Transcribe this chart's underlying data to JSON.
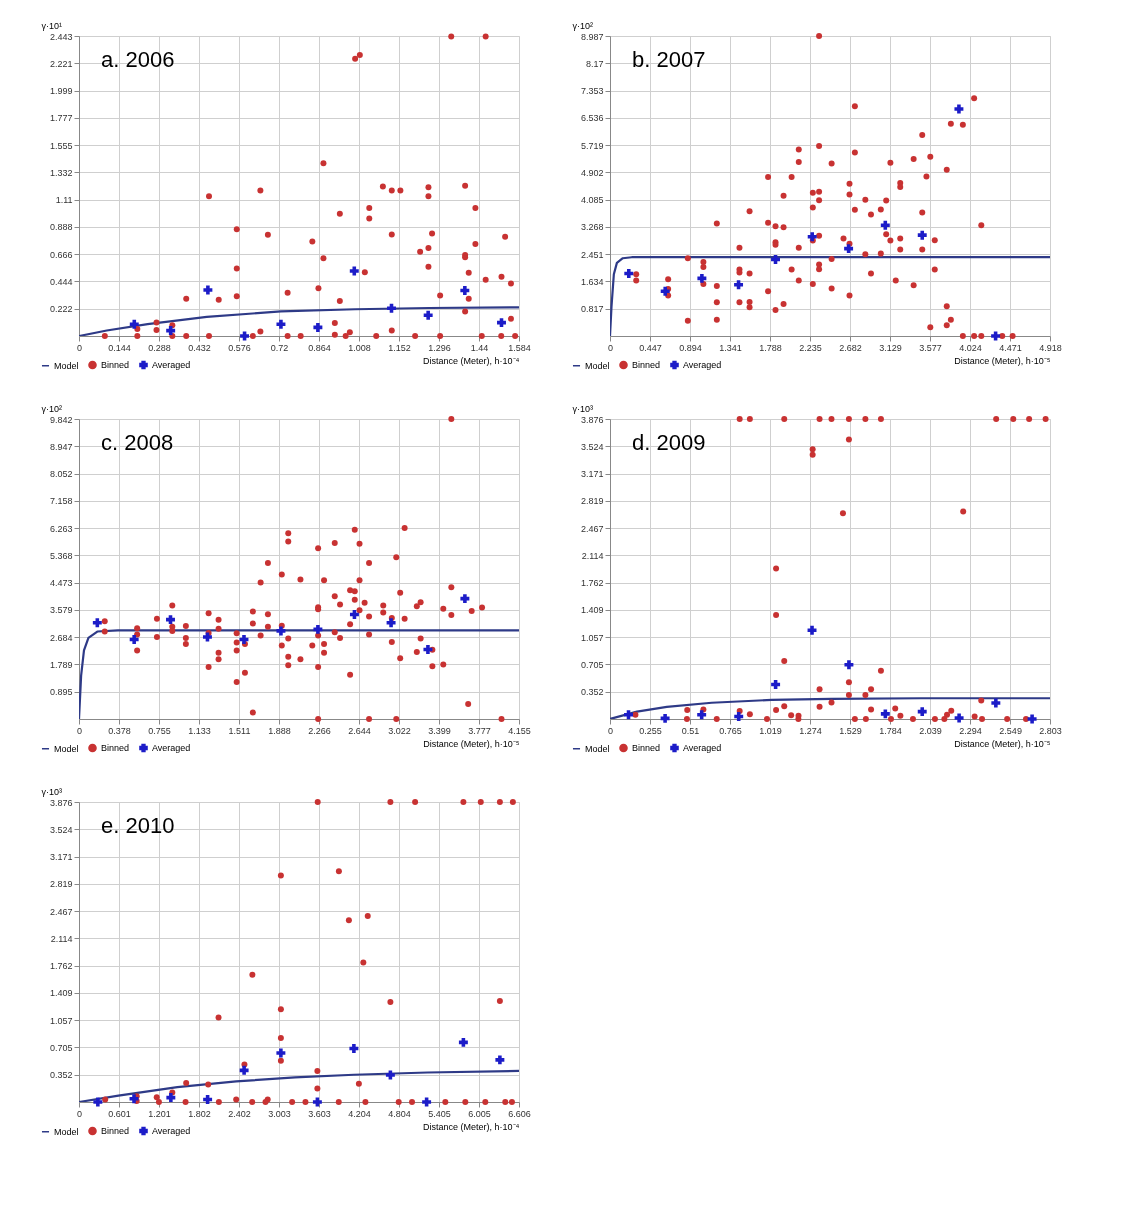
{
  "chart_data": [
    {
      "type": "scatter",
      "title": "a. 2006",
      "xlabel": "Distance (Meter), h·10⁻⁴",
      "ylabel": "γ·10¹",
      "grid": true,
      "legend": "bottom left",
      "xlim": [
        0,
        1.584
      ],
      "ylim": [
        0,
        2.443
      ],
      "xticks": [
        0,
        0.144,
        0.288,
        0.432,
        0.576,
        0.72,
        0.864,
        1.008,
        1.152,
        1.296,
        1.44,
        1.584
      ],
      "yticks": [
        0.222,
        0.444,
        0.666,
        0.888,
        1.11,
        1.332,
        1.555,
        1.777,
        1.999,
        2.221,
        2.443
      ],
      "series": [
        {
          "name": "Model",
          "type": "line",
          "color": "#2e3a87",
          "marker": "none",
          "x": [
            0,
            0.1,
            0.247,
            0.46,
            0.727,
            0.994,
            1.26,
            1.584
          ],
          "values": [
            0,
            0.045,
            0.096,
            0.156,
            0.2,
            0.218,
            0.228,
            0.233
          ]
        },
        {
          "name": "Binned",
          "color": "#c83232",
          "marker": "circle",
          "x": [
            0.093,
            0.21,
            0.21,
            0.279,
            0.279,
            0.336,
            0.336,
            0.386,
            0.386,
            0.468,
            0.468,
            0.503,
            0.568,
            0.568,
            0.568,
            0.626,
            0.653,
            0.653,
            0.68,
            0.751,
            0.751,
            0.798,
            0.84,
            0.862,
            0.88,
            0.88,
            0.921,
            0.921,
            0.939,
            0.939,
            0.975,
            0.994,
            1.011,
            1.029,
            1.045,
            1.045,
            1.094,
            1.126,
            1.126,
            1.126,
            1.157,
            1.228,
            1.258,
            1.258,
            1.258,
            1.258,
            1.271,
            1.3,
            1.34,
            1.39,
            1.39,
            1.39,
            1.39,
            1.403,
            1.403,
            1.427,
            1.427,
            1.464,
            1.464,
            1.521,
            1.534,
            1.555,
            1.555,
            0.96,
            1.07,
            1.21,
            1.3,
            1.45,
            1.52,
            1.57
          ],
          "values": [
            0,
            0.057,
            0,
            0.109,
            0.049,
            0.088,
            0,
            0.304,
            0,
            1.139,
            0,
            0.296,
            0.869,
            0.55,
            0.324,
            0,
            1.185,
            0.036,
            0.825,
            0.353,
            0,
            0,
            0.77,
            0.389,
            1.406,
            0.633,
            0.106,
            0.01,
            0.996,
            0.285,
            0.031,
            2.257,
            2.288,
            0.519,
            1.043,
            0.957,
            1.217,
            1.185,
            0.827,
            0.044,
            1.185,
            0.687,
            1.211,
            1.139,
            0.716,
            0.563,
            0.835,
            0.329,
            2.438,
            1.224,
            0.659,
            0.641,
            0.2,
            0.516,
            0.304,
            1.043,
            0.75,
            2.438,
            0.459,
            0.482,
            0.809,
            0.428,
            0.14,
            0,
            0,
            0,
            0,
            0,
            0,
            0
          ]
        },
        {
          "name": "Averaged",
          "color": "#1c1cc8",
          "marker": "cross",
          "x": [
            0.199,
            0.33,
            0.464,
            0.596,
            0.727,
            0.86,
            0.991,
            1.125,
            1.257,
            1.389,
            1.521
          ],
          "values": [
            0.096,
            0.044,
            0.374,
            0,
            0.096,
            0.07,
            0.529,
            0.226,
            0.169,
            0.371,
            0.109
          ]
        }
      ]
    },
    {
      "type": "scatter",
      "title": "b. 2007",
      "xlabel": "Distance (Meter), h·10⁻⁵",
      "ylabel": "γ·10²",
      "grid": true,
      "legend": "bottom left",
      "xlim": [
        0,
        4.918
      ],
      "ylim": [
        0,
        8.987
      ],
      "xticks": [
        0,
        0.447,
        0.894,
        1.341,
        1.788,
        2.235,
        2.682,
        3.129,
        3.577,
        4.024,
        4.471,
        4.918
      ],
      "yticks": [
        0.817,
        1.634,
        2.451,
        3.268,
        4.085,
        4.902,
        5.719,
        6.536,
        7.353,
        8.17,
        8.987
      ],
      "series": [
        {
          "name": "Model",
          "type": "line",
          "color": "#2e3a87",
          "marker": "none",
          "x": [
            0,
            0.017,
            0.043,
            0.077,
            0.143,
            0.243,
            0.477,
            4.918
          ],
          "values": [
            0,
            0.89,
            1.85,
            2.19,
            2.33,
            2.36,
            2.36,
            2.36
          ]
        },
        {
          "name": "Binned",
          "color": "#c83232",
          "marker": "circle",
          "x": [
            0.293,
            0.293,
            0.65,
            0.65,
            0.65,
            0.87,
            0.87,
            1.044,
            1.044,
            1.044,
            1.194,
            1.194,
            1.194,
            1.194,
            1.447,
            1.447,
            1.447,
            1.447,
            1.56,
            1.56,
            1.56,
            1.56,
            1.767,
            1.767,
            1.767,
            1.85,
            1.85,
            1.85,
            1.85,
            1.94,
            1.94,
            1.94,
            2.03,
            2.03,
            2.11,
            2.11,
            2.11,
            2.11,
            2.267,
            2.267,
            2.267,
            2.267,
            2.337,
            2.337,
            2.337,
            2.337,
            2.337,
            2.337,
            2.337,
            2.477,
            2.477,
            2.477,
            2.61,
            2.677,
            2.677,
            2.677,
            2.677,
            2.737,
            2.737,
            2.737,
            2.854,
            2.854,
            2.917,
            2.917,
            3.027,
            3.027,
            3.087,
            3.087,
            3.134,
            3.134,
            3.194,
            3.244,
            3.244,
            3.244,
            3.244,
            3.394,
            3.394,
            3.49,
            3.49,
            3.49,
            3.537,
            3.58,
            3.58,
            3.63,
            3.63,
            3.764,
            3.764,
            3.764,
            3.81,
            3.81,
            3.944,
            3.944,
            4.07,
            4.07,
            4.15,
            4.15,
            4.384,
            4.5
          ],
          "values": [
            1.85,
            1.66,
            1.7,
            1.41,
            1.21,
            0.46,
            2.33,
            2.22,
            2.07,
            1.56,
            3.37,
            1.5,
            1.01,
            0.49,
            2.64,
            1.99,
            1.9,
            1.01,
            3.74,
            1.87,
            1.02,
            0.86,
            4.76,
            3.39,
            1.34,
            3.29,
            2.81,
            2.73,
            0.78,
            4.2,
            3.26,
            0.96,
            4.76,
            1.99,
            5.59,
            5.21,
            2.64,
            1.66,
            4.29,
            3.85,
            2.86,
            1.56,
            8.987,
            5.69,
            4.32,
            4.07,
            3.0,
            2.14,
            2.0,
            5.17,
            2.31,
            1.42,
            2.92,
            4.56,
            4.24,
            2.76,
            1.21,
            6.88,
            5.5,
            3.78,
            4.08,
            2.45,
            3.64,
            1.87,
            3.79,
            2.47,
            4.06,
            3.05,
            5.19,
            2.86,
            1.66,
            4.58,
            4.46,
            2.92,
            2.59,
            5.3,
            1.52,
            6.02,
            3.7,
            2.59,
            4.78,
            5.37,
            0.26,
            2.87,
            1.99,
            4.98,
            0.89,
            0.32,
            6.36,
            0.49,
            6.33,
            0,
            7.12,
            0,
            3.32,
            0,
            0,
            0
          ]
        },
        {
          "name": "Averaged",
          "color": "#1c1cc8",
          "marker": "cross",
          "x": [
            0.21,
            0.617,
            1.027,
            1.437,
            1.85,
            2.26,
            2.667,
            3.077,
            3.49,
            3.9,
            4.31
          ],
          "values": [
            1.87,
            1.343,
            1.726,
            1.534,
            2.292,
            2.973,
            2.618,
            3.318,
            3.021,
            6.8,
            0
          ]
        }
      ]
    },
    {
      "type": "scatter",
      "title": "c. 2008",
      "xlabel": "Distance (Meter), h·10⁻⁵",
      "ylabel": "γ·10²",
      "grid": true,
      "legend": "bottom left",
      "xlim": [
        0,
        4.155
      ],
      "ylim": [
        0,
        9.842
      ],
      "xticks": [
        0,
        0.378,
        0.755,
        1.133,
        1.511,
        1.888,
        2.266,
        2.644,
        3.022,
        3.399,
        3.777,
        4.155
      ],
      "yticks": [
        0.895,
        1.789,
        2.684,
        3.579,
        4.473,
        5.368,
        6.263,
        7.158,
        8.052,
        8.947,
        9.842
      ],
      "series": [
        {
          "name": "Model",
          "type": "line",
          "color": "#2e3a87",
          "marker": "none",
          "x": [
            0,
            0.02,
            0.047,
            0.089,
            0.173,
            0.368,
            4.155
          ],
          "values": [
            0,
            1.42,
            2.25,
            2.66,
            2.87,
            2.91,
            2.91
          ]
        },
        {
          "name": "Binned",
          "color": "#c83232",
          "marker": "circle",
          "x": [
            0.243,
            0.243,
            0.549,
            0.549,
            0.549,
            0.736,
            0.736,
            0.881,
            0.881,
            0.881,
            1.009,
            1.009,
            1.009,
            1.224,
            1.224,
            1.224,
            1.318,
            1.318,
            1.318,
            1.318,
            1.489,
            1.489,
            1.489,
            1.489,
            1.567,
            1.567,
            1.642,
            1.642,
            1.642,
            1.715,
            1.715,
            1.784,
            1.784,
            1.784,
            1.915,
            1.915,
            1.915,
            1.976,
            1.976,
            1.976,
            1.976,
            1.976,
            2.091,
            2.091,
            2.203,
            2.258,
            2.258,
            2.258,
            2.258,
            2.258,
            2.258,
            2.314,
            2.314,
            2.314,
            2.415,
            2.415,
            2.415,
            2.465,
            2.465,
            2.56,
            2.56,
            2.56,
            2.604,
            2.604,
            2.604,
            2.649,
            2.649,
            2.649,
            2.697,
            2.739,
            2.739,
            2.739,
            2.739,
            2.873,
            2.873,
            2.954,
            2.954,
            2.996,
            2.996,
            3.033,
            3.033,
            3.075,
            3.075,
            3.19,
            3.19,
            3.226,
            3.226,
            3.337,
            3.337,
            3.44,
            3.44,
            3.516,
            3.516,
            3.516,
            3.675,
            3.708,
            3.806,
            3.99
          ],
          "values": [
            3.21,
            2.87,
            2.98,
            2.77,
            2.25,
            3.29,
            2.69,
            3.72,
            3.03,
            2.89,
            3.05,
            2.66,
            2.46,
            3.47,
            2.82,
            1.71,
            3.26,
            2.17,
            1.96,
            2.96,
            2.81,
            2.51,
            2.25,
            1.21,
            2.46,
            1.52,
            3.53,
            3.13,
            0.21,
            4.48,
            2.74,
            5.12,
            3.44,
            3.03,
            4.74,
            3.06,
            2.41,
            6.09,
            5.82,
            2.64,
            2.04,
            1.76,
            4.58,
            1.96,
            2.41,
            5.6,
            3.67,
            3.6,
            2.74,
            1.71,
            0,
            4.55,
            2.46,
            2.17,
            5.77,
            4.03,
            2.85,
            3.76,
            2.66,
            4.22,
            3.11,
            1.45,
            6.21,
            4.19,
            3.91,
            5.75,
            4.55,
            3.57,
            3.81,
            5.12,
            3.36,
            2.77,
            0,
            3.72,
            3.49,
            2.53,
            3.31,
            5.31,
            0,
            4.14,
            1.99,
            6.27,
            3.29,
            3.7,
            2.2,
            3.83,
            2.64,
            2.27,
            1.73,
            3.62,
            1.79,
            9.842,
            4.32,
            3.41,
            0.49,
            3.54,
            3.66,
            0
          ]
        },
        {
          "name": "Averaged",
          "color": "#1c1cc8",
          "marker": "cross",
          "x": [
            0.173,
            0.521,
            0.864,
            1.213,
            1.558,
            1.907,
            2.256,
            2.601,
            2.947,
            3.295,
            3.644
          ],
          "values": [
            3.16,
            2.61,
            3.26,
            2.69,
            2.61,
            2.89,
            2.94,
            3.43,
            3.16,
            2.28,
            3.95
          ]
        }
      ]
    },
    {
      "type": "scatter",
      "title": "d. 2009",
      "xlabel": "Distance (Meter), h·10⁻⁵",
      "ylabel": "γ·10³",
      "grid": true,
      "legend": "bottom left",
      "xlim": [
        0,
        2.803
      ],
      "ylim": [
        0,
        3.876
      ],
      "xticks": [
        0,
        0.255,
        0.51,
        0.765,
        1.019,
        1.274,
        1.529,
        1.784,
        2.039,
        2.294,
        2.549,
        2.803
      ],
      "yticks": [
        0.352,
        0.705,
        1.057,
        1.409,
        1.762,
        2.114,
        2.467,
        2.819,
        3.171,
        3.524,
        3.876
      ],
      "series": [
        {
          "name": "Model",
          "type": "line",
          "color": "#2e3a87",
          "marker": "none",
          "x": [
            0,
            0.172,
            0.362,
            0.648,
            1.03,
            1.411,
            1.983,
            2.803
          ],
          "values": [
            0,
            0.095,
            0.157,
            0.21,
            0.247,
            0.26,
            0.268,
            0.268
          ]
        },
        {
          "name": "Binned",
          "color": "#c83232",
          "marker": "circle",
          "x": [
            0.826,
            0.891,
            1.11,
            1.335,
            1.411,
            1.522,
            1.627,
            1.726,
            2.46,
            2.569,
            2.67,
            2.775,
            1.522,
            1.291,
            1.291,
            1.484,
            2.25,
            1.058,
            1.058,
            1.11,
            1.726,
            1.522,
            1.522,
            1.335,
            1.335,
            1.663,
            1.627,
            1.411,
            2.365,
            0.162,
            0.492,
            0.595,
            0.826,
            0.891,
            1.058,
            1.11,
            1.154,
            1.201,
            1.663,
            1.817,
            1.85,
            2.147,
            2.174,
            2.323,
            0.49,
            0.68,
            1.0,
            1.2,
            1.56,
            1.63,
            1.79,
            1.93,
            2.07,
            2.13,
            2.37,
            2.53,
            2.65
          ],
          "values": [
            3.876,
            3.876,
            3.876,
            3.876,
            3.876,
            3.876,
            3.876,
            3.876,
            3.876,
            3.876,
            3.876,
            3.876,
            3.612,
            3.484,
            3.414,
            2.659,
            2.68,
            1.946,
            1.344,
            0.75,
            0.623,
            0.474,
            0.309,
            0.383,
            0.157,
            0.383,
            0.309,
            0.214,
            0.239,
            0.054,
            0.115,
            0.124,
            0.103,
            0.062,
            0.115,
            0.165,
            0.049,
            0.041,
            0.124,
            0.136,
            0.041,
            0.054,
            0.107,
            0.033,
            0,
            0,
            0,
            0,
            0,
            0,
            0,
            0,
            0,
            0,
            0,
            0,
            0
          ]
        },
        {
          "name": "Averaged",
          "color": "#1c1cc8",
          "marker": "cross",
          "x": [
            0.118,
            0.351,
            0.584,
            0.82,
            1.055,
            1.287,
            1.522,
            1.754,
            1.989,
            2.224,
            2.458,
            2.689
          ],
          "values": [
            0.054,
            0.008,
            0.054,
            0.033,
            0.445,
            1.146,
            0.701,
            0.066,
            0.095,
            0.012,
            0.206,
            0
          ]
        }
      ]
    },
    {
      "type": "scatter",
      "title": "e. 2010",
      "xlabel": "Distance (Meter), h·10⁻⁴",
      "ylabel": "γ·10³",
      "grid": true,
      "legend": "bottom left",
      "xlim": [
        0,
        6.606
      ],
      "ylim": [
        0,
        3.876
      ],
      "xticks": [
        0,
        0.601,
        1.201,
        1.802,
        2.402,
        3.003,
        3.603,
        4.204,
        4.804,
        5.405,
        6.005,
        6.606
      ],
      "yticks": [
        0.352,
        0.705,
        1.057,
        1.409,
        1.762,
        2.114,
        2.467,
        2.819,
        3.171,
        3.524,
        3.876
      ],
      "series": [
        {
          "name": "Model",
          "type": "line",
          "color": "#2e3a87",
          "marker": "none",
          "x": [
            0,
            0.592,
            1.476,
            2.36,
            3.243,
            4.127,
            5.232,
            6.606
          ],
          "values": [
            0,
            0.082,
            0.192,
            0.266,
            0.319,
            0.352,
            0.381,
            0.401
          ]
        },
        {
          "name": "Binned",
          "color": "#c83232",
          "marker": "circle",
          "x": [
            3.584,
            4.675,
            5.046,
            5.771,
            6.032,
            6.319,
            6.514,
            3.031,
            3.902,
            4.052,
            4.335,
            4.269,
            2.603,
            4.675,
            6.319,
            3.031,
            2.095,
            3.031,
            3.031,
            2.484,
            3.579,
            3.579,
            4.202,
            1.609,
            1.94,
            1.401,
            1.167,
            0.393,
            0.866,
            0.866,
            2.36,
            2.833,
            1.2,
            1.6,
            2.1,
            2.6,
            2.8,
            3.2,
            3.4,
            3.9,
            4.3,
            4.8,
            5.0,
            5.5,
            5.8,
            6.1,
            6.4,
            6.5
          ],
          "values": [
            3.876,
            3.876,
            3.876,
            3.876,
            3.876,
            3.876,
            3.876,
            2.926,
            2.98,
            2.347,
            2.403,
            1.801,
            1.645,
            1.293,
            1.306,
            1.199,
            1.093,
            0.827,
            0.532,
            0.483,
            0.401,
            0.176,
            0.237,
            0.246,
            0.225,
            0.123,
            0.061,
            0.033,
            0.074,
            0.012,
            0.033,
            0.033,
            0,
            0,
            0,
            0,
            0,
            0,
            0,
            0,
            0,
            0,
            0,
            0,
            0,
            0,
            0,
            0
          ]
        },
        {
          "name": "Averaged",
          "color": "#1c1cc8",
          "marker": "cross",
          "x": [
            0.283,
            0.826,
            1.379,
            1.931,
            2.479,
            3.031,
            3.579,
            4.127,
            4.675,
            5.219,
            5.771,
            6.319
          ],
          "values": [
            0,
            0.041,
            0.057,
            0.033,
            0.409,
            0.634,
            0,
            0.692,
            0.348,
            0,
            0.77,
            0.544
          ]
        }
      ]
    }
  ]
}
